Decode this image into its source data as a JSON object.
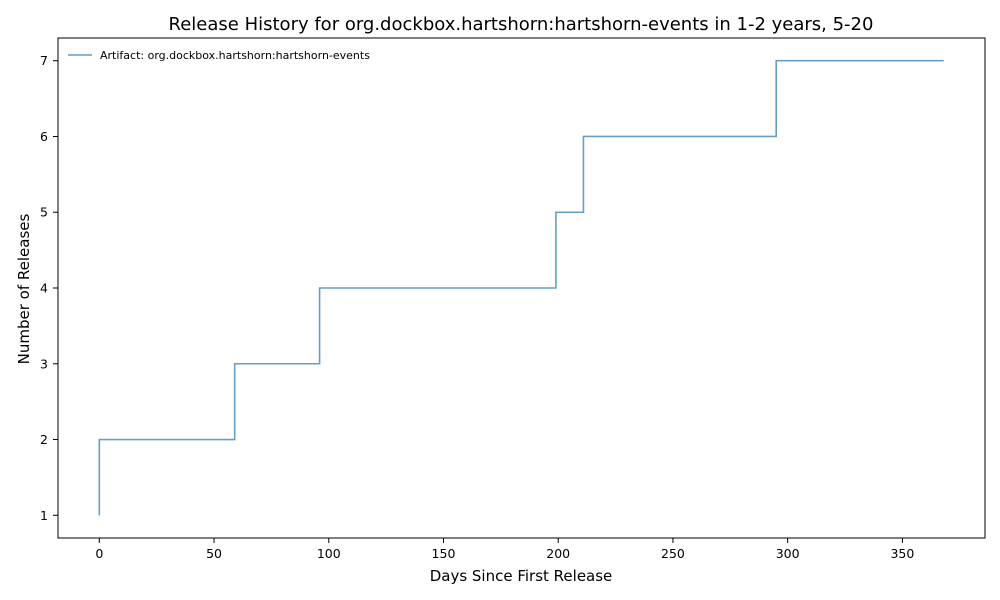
{
  "chart_data": {
    "type": "line",
    "step": "post",
    "title": "Release History for org.dockbox.hartshorn:hartshorn-events in 1-2 years, 5-20",
    "xlabel": "Days Since First Release",
    "ylabel": "Number of Releases",
    "xlim": [
      -18,
      386
    ],
    "ylim": [
      0.7,
      7.3
    ],
    "xticks": [
      0,
      50,
      100,
      150,
      200,
      250,
      300,
      350
    ],
    "yticks": [
      1,
      2,
      3,
      4,
      5,
      6,
      7
    ],
    "grid": false,
    "legend_position": "top-left",
    "series": [
      {
        "name": "Artifact: org.dockbox.hartshorn:hartshorn-events",
        "color": "#1f77b4",
        "x": [
          0,
          0,
          59,
          96,
          199,
          211,
          295,
          368
        ],
        "y": [
          1,
          2,
          3,
          4,
          5,
          6,
          7,
          7
        ]
      }
    ]
  }
}
